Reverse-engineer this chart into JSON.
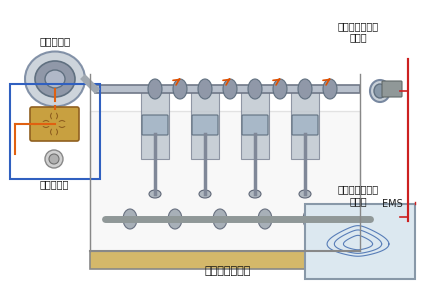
{
  "title": "",
  "bg_color": "#ffffff",
  "labels": {
    "phase_adjuster": "相位调节器",
    "cam_sensor": "凸轮位置传感器",
    "signal_disk_top": "信号盘",
    "oil_control_valve": "机油控制阀",
    "crank_sensor": "曲轴位置传感器",
    "signal_disk_bottom": "信号盘",
    "engine_mgmt": "发动机管理系统",
    "ems": "EMS"
  },
  "image_path": null,
  "frame_color": "#4a90d9",
  "orange_lines": true,
  "red_lines": true,
  "blue_border": true
}
